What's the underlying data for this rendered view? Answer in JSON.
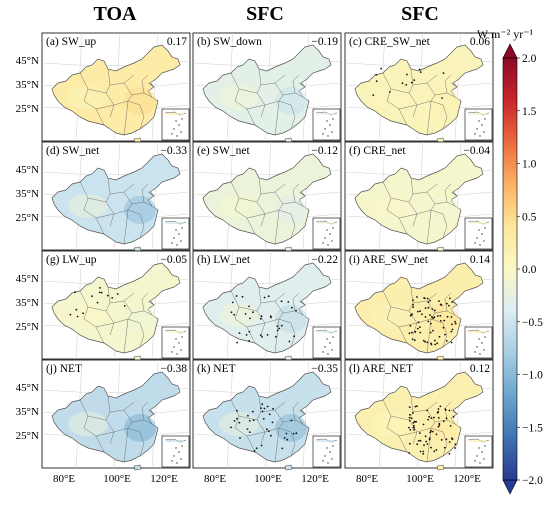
{
  "column_titles": [
    "TOA",
    "SFC",
    "SFC"
  ],
  "colorbar": {
    "unit": "W m⁻² yr⁻¹",
    "min": -2.0,
    "max": 2.0,
    "ticks": [
      "2.0",
      "1.5",
      "1.0",
      "0.5",
      "0.0",
      "−0.5",
      "−1.0",
      "−1.5",
      "−2.0"
    ],
    "colors": [
      "#8b0a26",
      "#c8262b",
      "#ec6a3f",
      "#fbb364",
      "#fde79a",
      "#fbf8c4",
      "#dcedf3",
      "#a6cde2",
      "#6aa5cc",
      "#3f72b2",
      "#283a91"
    ]
  },
  "lat_labels": [
    "45°N",
    "35°N",
    "25°N"
  ],
  "lon_labels": [
    "80°E",
    "100°E",
    "120°E"
  ],
  "chart_data": {
    "type": "heatmap",
    "panels": [
      {
        "label": "(a) SW_up",
        "value": "0.17",
        "trend": 0.17,
        "stipple": "none"
      },
      {
        "label": "(b) SW_down",
        "value": "−0.19",
        "trend": -0.19,
        "stipple": "none"
      },
      {
        "label": "(c) CRE_SW_net",
        "value": "0.06",
        "trend": 0.06,
        "stipple": "sparse"
      },
      {
        "label": "(d) SW_net",
        "value": "−0.33",
        "trend": -0.33,
        "stipple": "none"
      },
      {
        "label": "(e) SW_net",
        "value": "−0.12",
        "trend": -0.12,
        "stipple": "none"
      },
      {
        "label": "(f) CRE_net",
        "value": "−0.04",
        "trend": -0.04,
        "stipple": "none"
      },
      {
        "label": "(g) LW_up",
        "value": "−0.05",
        "trend": -0.05,
        "stipple": "sparse"
      },
      {
        "label": "(h) LW_net",
        "value": "−0.22",
        "trend": -0.22,
        "stipple": "medium"
      },
      {
        "label": "(i) ARE_SW_net",
        "value": "0.14",
        "trend": 0.14,
        "stipple": "dense"
      },
      {
        "label": "(j) NET",
        "value": "−0.38",
        "trend": -0.38,
        "stipple": "none"
      },
      {
        "label": "(k) NET",
        "value": "−0.35",
        "trend": -0.35,
        "stipple": "medium"
      },
      {
        "label": "(l) ARE_NET",
        "value": "0.12",
        "trend": 0.12,
        "stipple": "dense"
      }
    ]
  }
}
